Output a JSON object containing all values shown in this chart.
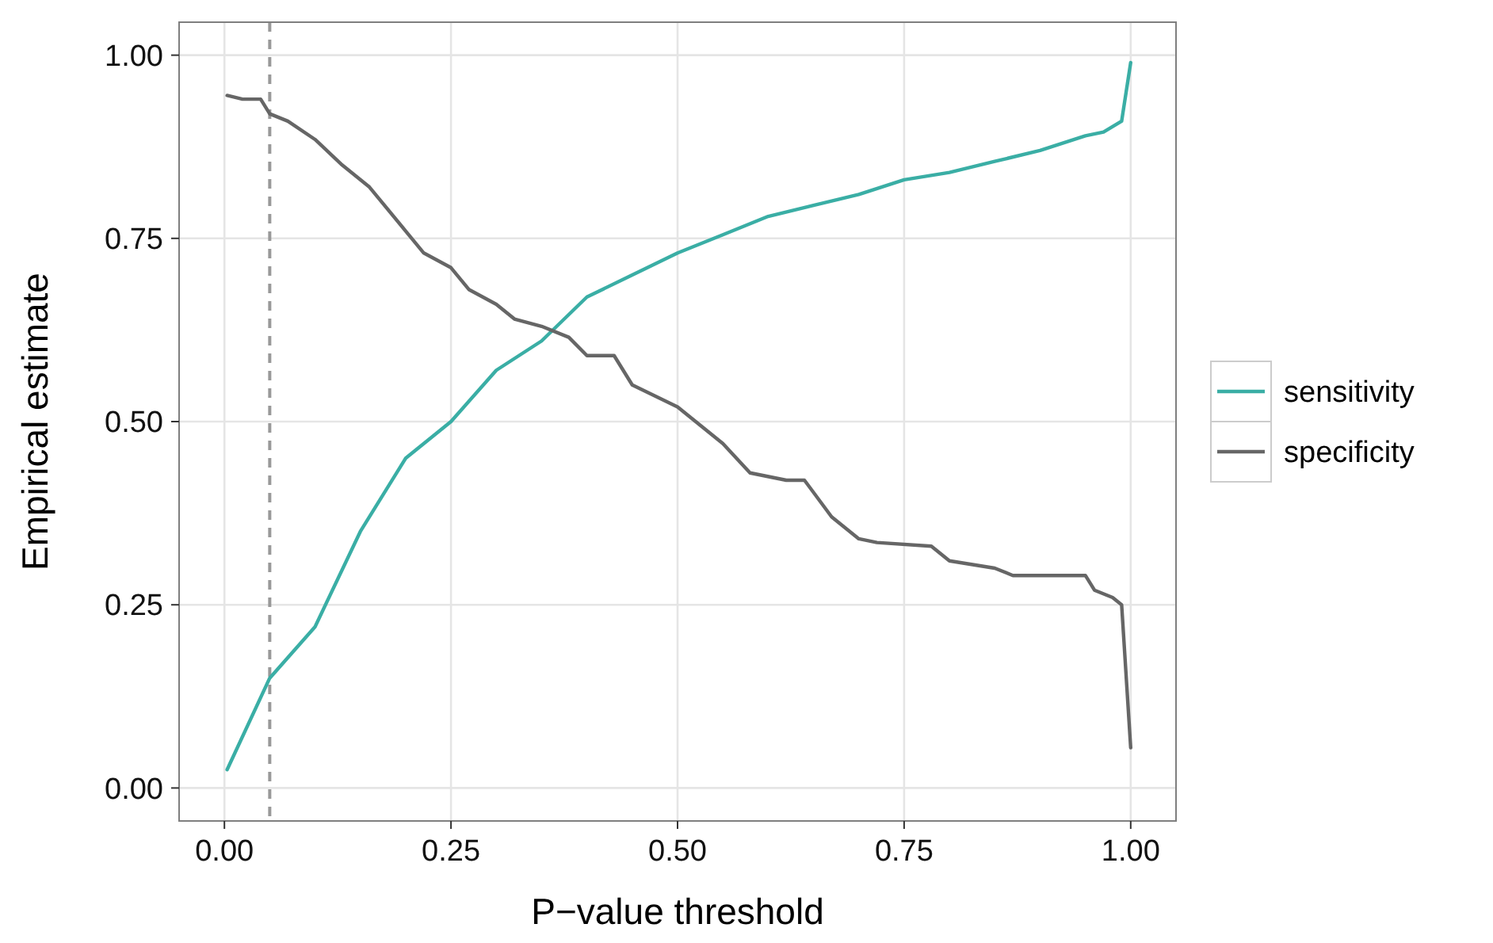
{
  "chart_data": {
    "type": "line",
    "xlabel": "P−value threshold",
    "ylabel": "Empirical estimate",
    "xlim": [
      -0.05,
      1.05
    ],
    "ylim": [
      -0.045,
      1.045
    ],
    "xticks": [
      {
        "value": 0,
        "label": "0.00"
      },
      {
        "value": 0.25,
        "label": "0.25"
      },
      {
        "value": 0.5,
        "label": "0.50"
      },
      {
        "value": 0.75,
        "label": "0.75"
      },
      {
        "value": 1,
        "label": "1.00"
      }
    ],
    "yticks": [
      {
        "value": 0,
        "label": "0.00"
      },
      {
        "value": 0.25,
        "label": "0.25"
      },
      {
        "value": 0.5,
        "label": "0.50"
      },
      {
        "value": 0.75,
        "label": "0.75"
      },
      {
        "value": 1,
        "label": "1.00"
      }
    ],
    "grid": true,
    "legend": "right",
    "line_style": "solid",
    "ref_lines": [
      {
        "axis": "x",
        "value": 0.05,
        "color": "#999999",
        "line_style": "dashed"
      }
    ],
    "series": [
      {
        "name": "sensitivity",
        "color": "#3aaea5",
        "x": [
          0.003,
          0.05,
          0.1,
          0.15,
          0.2,
          0.25,
          0.3,
          0.35,
          0.4,
          0.45,
          0.5,
          0.55,
          0.6,
          0.65,
          0.7,
          0.75,
          0.8,
          0.85,
          0.9,
          0.95,
          0.97,
          0.99,
          1.0
        ],
        "values": [
          0.025,
          0.15,
          0.22,
          0.35,
          0.45,
          0.5,
          0.57,
          0.61,
          0.67,
          0.7,
          0.73,
          0.755,
          0.78,
          0.795,
          0.81,
          0.83,
          0.84,
          0.855,
          0.87,
          0.89,
          0.895,
          0.91,
          0.99
        ]
      },
      {
        "name": "specificity",
        "color": "#666666",
        "x": [
          0.003,
          0.02,
          0.04,
          0.05,
          0.07,
          0.1,
          0.13,
          0.16,
          0.2,
          0.22,
          0.25,
          0.27,
          0.3,
          0.32,
          0.35,
          0.38,
          0.4,
          0.43,
          0.45,
          0.5,
          0.55,
          0.58,
          0.62,
          0.64,
          0.67,
          0.7,
          0.72,
          0.78,
          0.8,
          0.85,
          0.87,
          0.95,
          0.96,
          0.98,
          0.99,
          1.0
        ],
        "values": [
          0.945,
          0.94,
          0.94,
          0.92,
          0.91,
          0.885,
          0.85,
          0.82,
          0.76,
          0.73,
          0.71,
          0.68,
          0.66,
          0.64,
          0.63,
          0.615,
          0.59,
          0.59,
          0.55,
          0.52,
          0.47,
          0.43,
          0.42,
          0.42,
          0.37,
          0.34,
          0.335,
          0.33,
          0.31,
          0.3,
          0.29,
          0.29,
          0.27,
          0.26,
          0.25,
          0.055
        ]
      }
    ]
  }
}
